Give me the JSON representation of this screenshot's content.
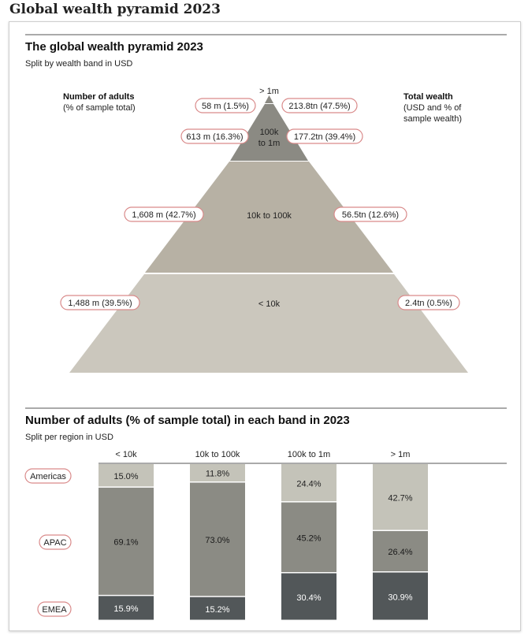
{
  "page_title": "Global wealth pyramid 2023",
  "colors": {
    "tier_top": "#8b8a83",
    "tier_upper_mid": "#8b8a83",
    "tier_mid": "#b7b1a4",
    "tier_bottom": "#cbc7bd",
    "seg_americas": "#c4c3b9",
    "seg_apac": "#8b8b84",
    "seg_emea": "#525759",
    "pill_border": "#d98a8a"
  },
  "chart_data": [
    {
      "type": "pyramid",
      "title": "The global wealth pyramid 2023",
      "subtitle": "Split by wealth band in USD",
      "left_header": [
        "Number of adults",
        "(% of sample total)"
      ],
      "right_header": [
        "Total wealth",
        "(USD and % of",
        "sample wealth)"
      ],
      "tiers": [
        {
          "band": "> 1m",
          "adults": "58 m (1.5%)",
          "wealth": "213.8tn (47.5%)"
        },
        {
          "band": "100k to 1m",
          "band_lines": [
            "100k",
            "to 1m"
          ],
          "adults": "613 m (16.3%)",
          "wealth": "177.2tn (39.4%)"
        },
        {
          "band": "10k to 100k",
          "adults": "1,608 m (42.7%)",
          "wealth": "56.5tn (12.6%)"
        },
        {
          "band": "< 10k",
          "adults": "1,488 m (39.5%)",
          "wealth": "2.4tn (0.5%)"
        }
      ]
    },
    {
      "type": "bar",
      "stacked": true,
      "title": "Number of adults (% of sample total) in each band in 2023",
      "subtitle": "Split per region in USD",
      "categories": [
        "< 10k",
        "10k to 100k",
        "100k to 1m",
        "> 1m"
      ],
      "series": [
        {
          "name": "Americas",
          "values": [
            15.0,
            11.8,
            24.4,
            42.7
          ],
          "labels": [
            "15.0%",
            "11.8%",
            "24.4%",
            "42.7%"
          ]
        },
        {
          "name": "APAC",
          "values": [
            69.1,
            73.0,
            45.2,
            26.4
          ],
          "labels": [
            "69.1%",
            "73.0%",
            "45.2%",
            "26.4%"
          ]
        },
        {
          "name": "EMEA",
          "values": [
            15.9,
            15.2,
            30.4,
            30.9
          ],
          "labels": [
            "15.9%",
            "15.2%",
            "30.4%",
            "30.9%"
          ]
        }
      ],
      "ylim": [
        0,
        100
      ]
    }
  ]
}
